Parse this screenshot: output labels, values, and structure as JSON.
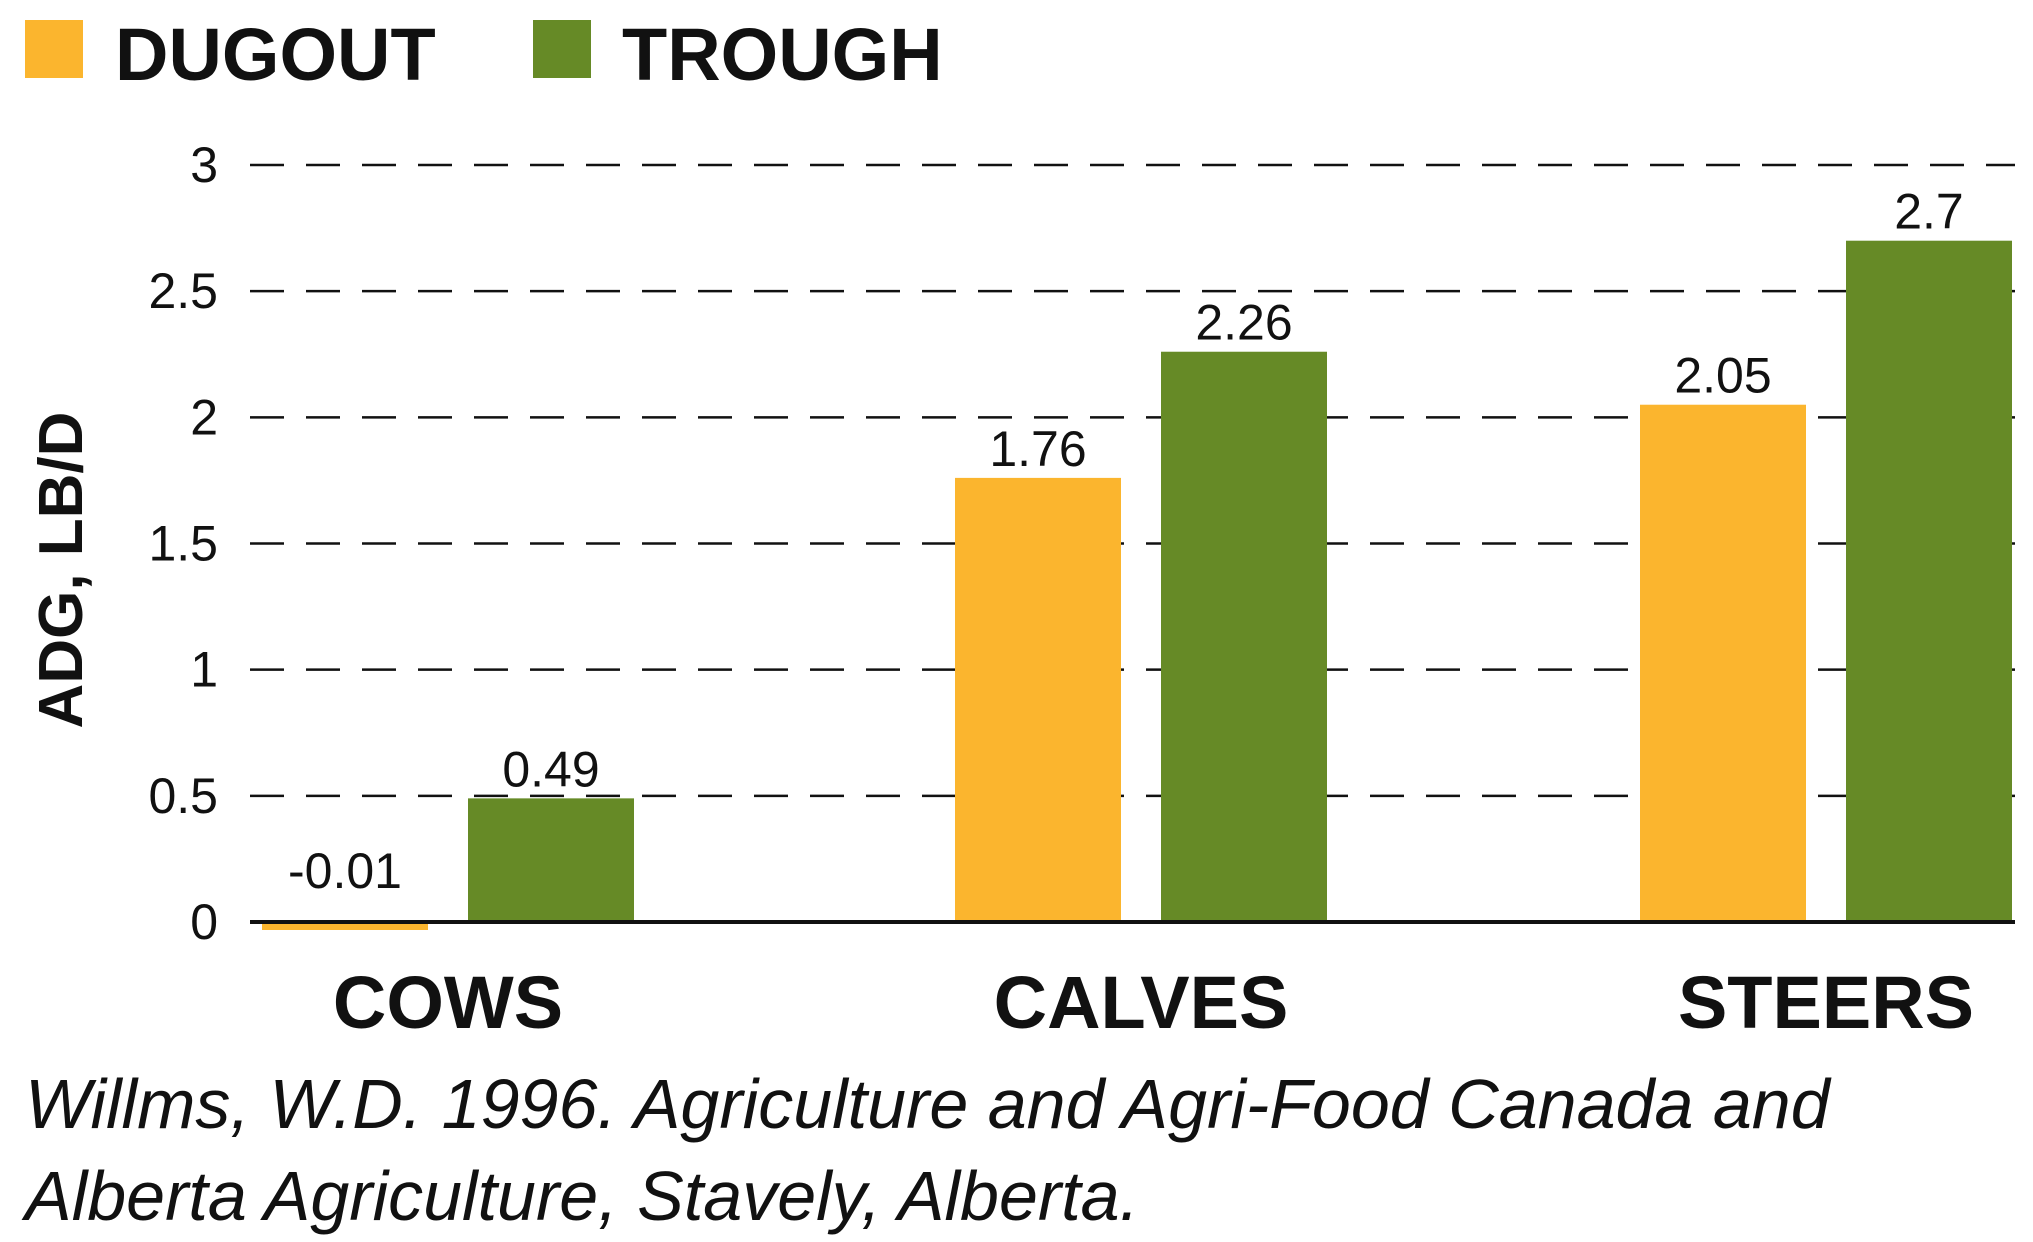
{
  "chart_data": {
    "type": "bar",
    "title": "",
    "xlabel": "",
    "ylabel": "ADG, LB/D",
    "ylim": [
      0,
      3
    ],
    "yticks": [
      "0",
      "0.5",
      "1",
      "1.5",
      "2",
      "2.5",
      "3"
    ],
    "ytick_values": [
      0,
      0.5,
      1,
      1.5,
      2,
      2.5,
      3
    ],
    "grid": true,
    "legend_position": "top-left",
    "categories": [
      "COWS",
      "CALVES",
      "STEERS"
    ],
    "series": [
      {
        "name": "DUGOUT",
        "color": "#FBB52E",
        "values": [
          -0.01,
          1.76,
          2.05
        ],
        "labels": [
          "-0.01",
          "1.76",
          "2.05"
        ]
      },
      {
        "name": "TROUGH",
        "color": "#668A26",
        "values": [
          0.49,
          2.26,
          2.7
        ],
        "labels": [
          "0.49",
          "2.26",
          "2.7"
        ]
      }
    ]
  },
  "source": {
    "line1": "Willms, W.D. 1996. Agriculture and Agri-Food Canada and",
    "line2": "Alberta Agriculture, Stavely, Alberta."
  }
}
